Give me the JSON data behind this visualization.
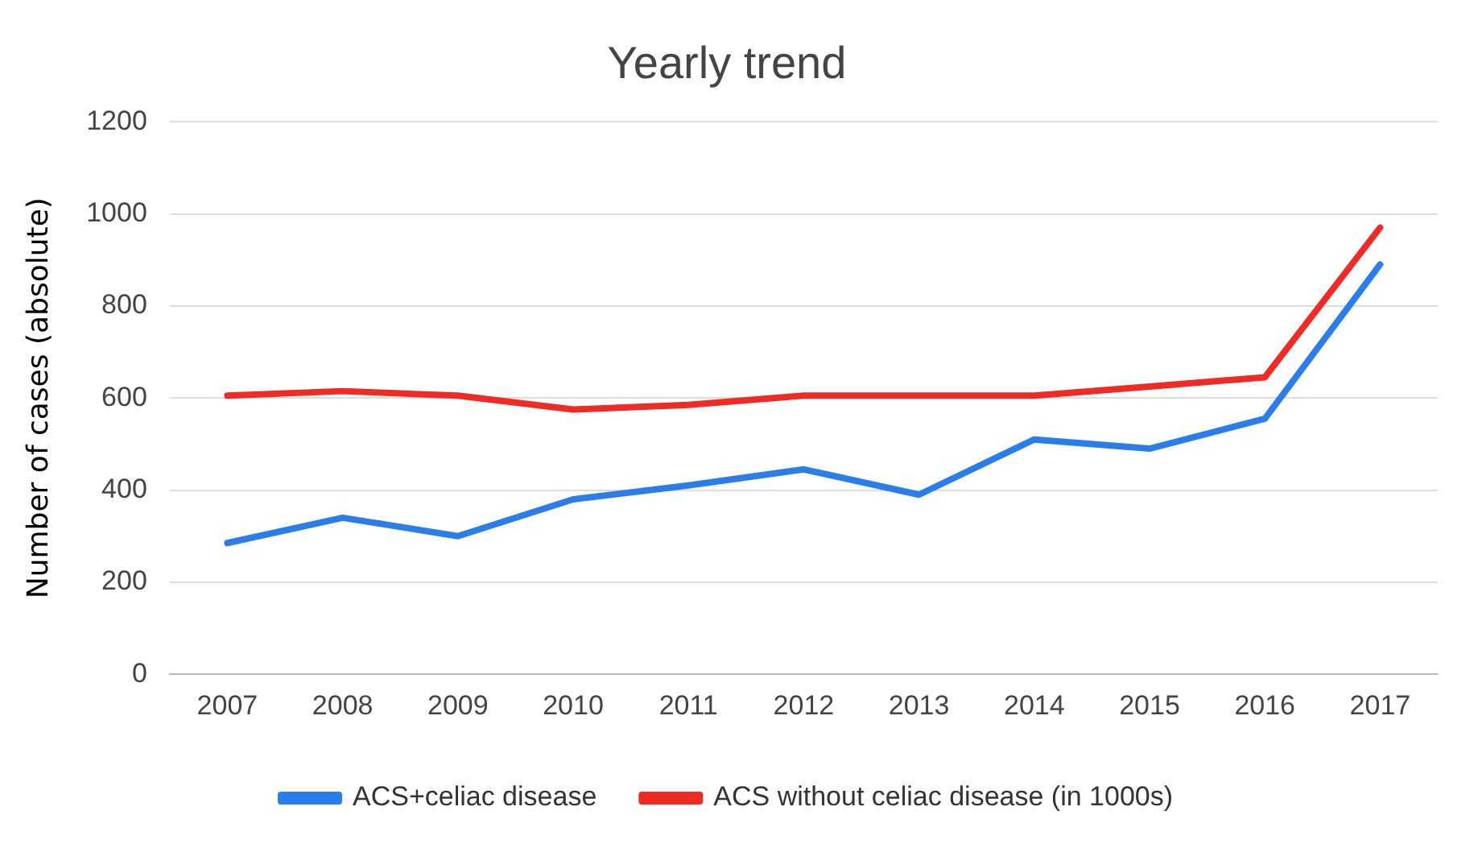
{
  "chart_data": {
    "type": "line",
    "title": "Yearly trend",
    "ylabel": "Number of cases (absolute)",
    "categories": [
      "2007",
      "2008",
      "2009",
      "2010",
      "2011",
      "2012",
      "2013",
      "2014",
      "2015",
      "2016",
      "2017"
    ],
    "series": [
      {
        "name": "ACS+celiac disease",
        "color": "#2b7de9",
        "values": [
          285,
          340,
          300,
          380,
          410,
          445,
          390,
          510,
          490,
          555,
          890
        ]
      },
      {
        "name": "ACS without celiac disease (in 1000s)",
        "color": "#ee2b24",
        "values": [
          605,
          615,
          605,
          575,
          585,
          605,
          605,
          605,
          625,
          645,
          970
        ]
      }
    ],
    "ylim": [
      0,
      1200
    ],
    "yticks": [
      0,
      200,
      400,
      600,
      800,
      1000,
      1200
    ],
    "grid": "y",
    "legend": "bottom",
    "marker": "none",
    "line_style": "solid"
  }
}
